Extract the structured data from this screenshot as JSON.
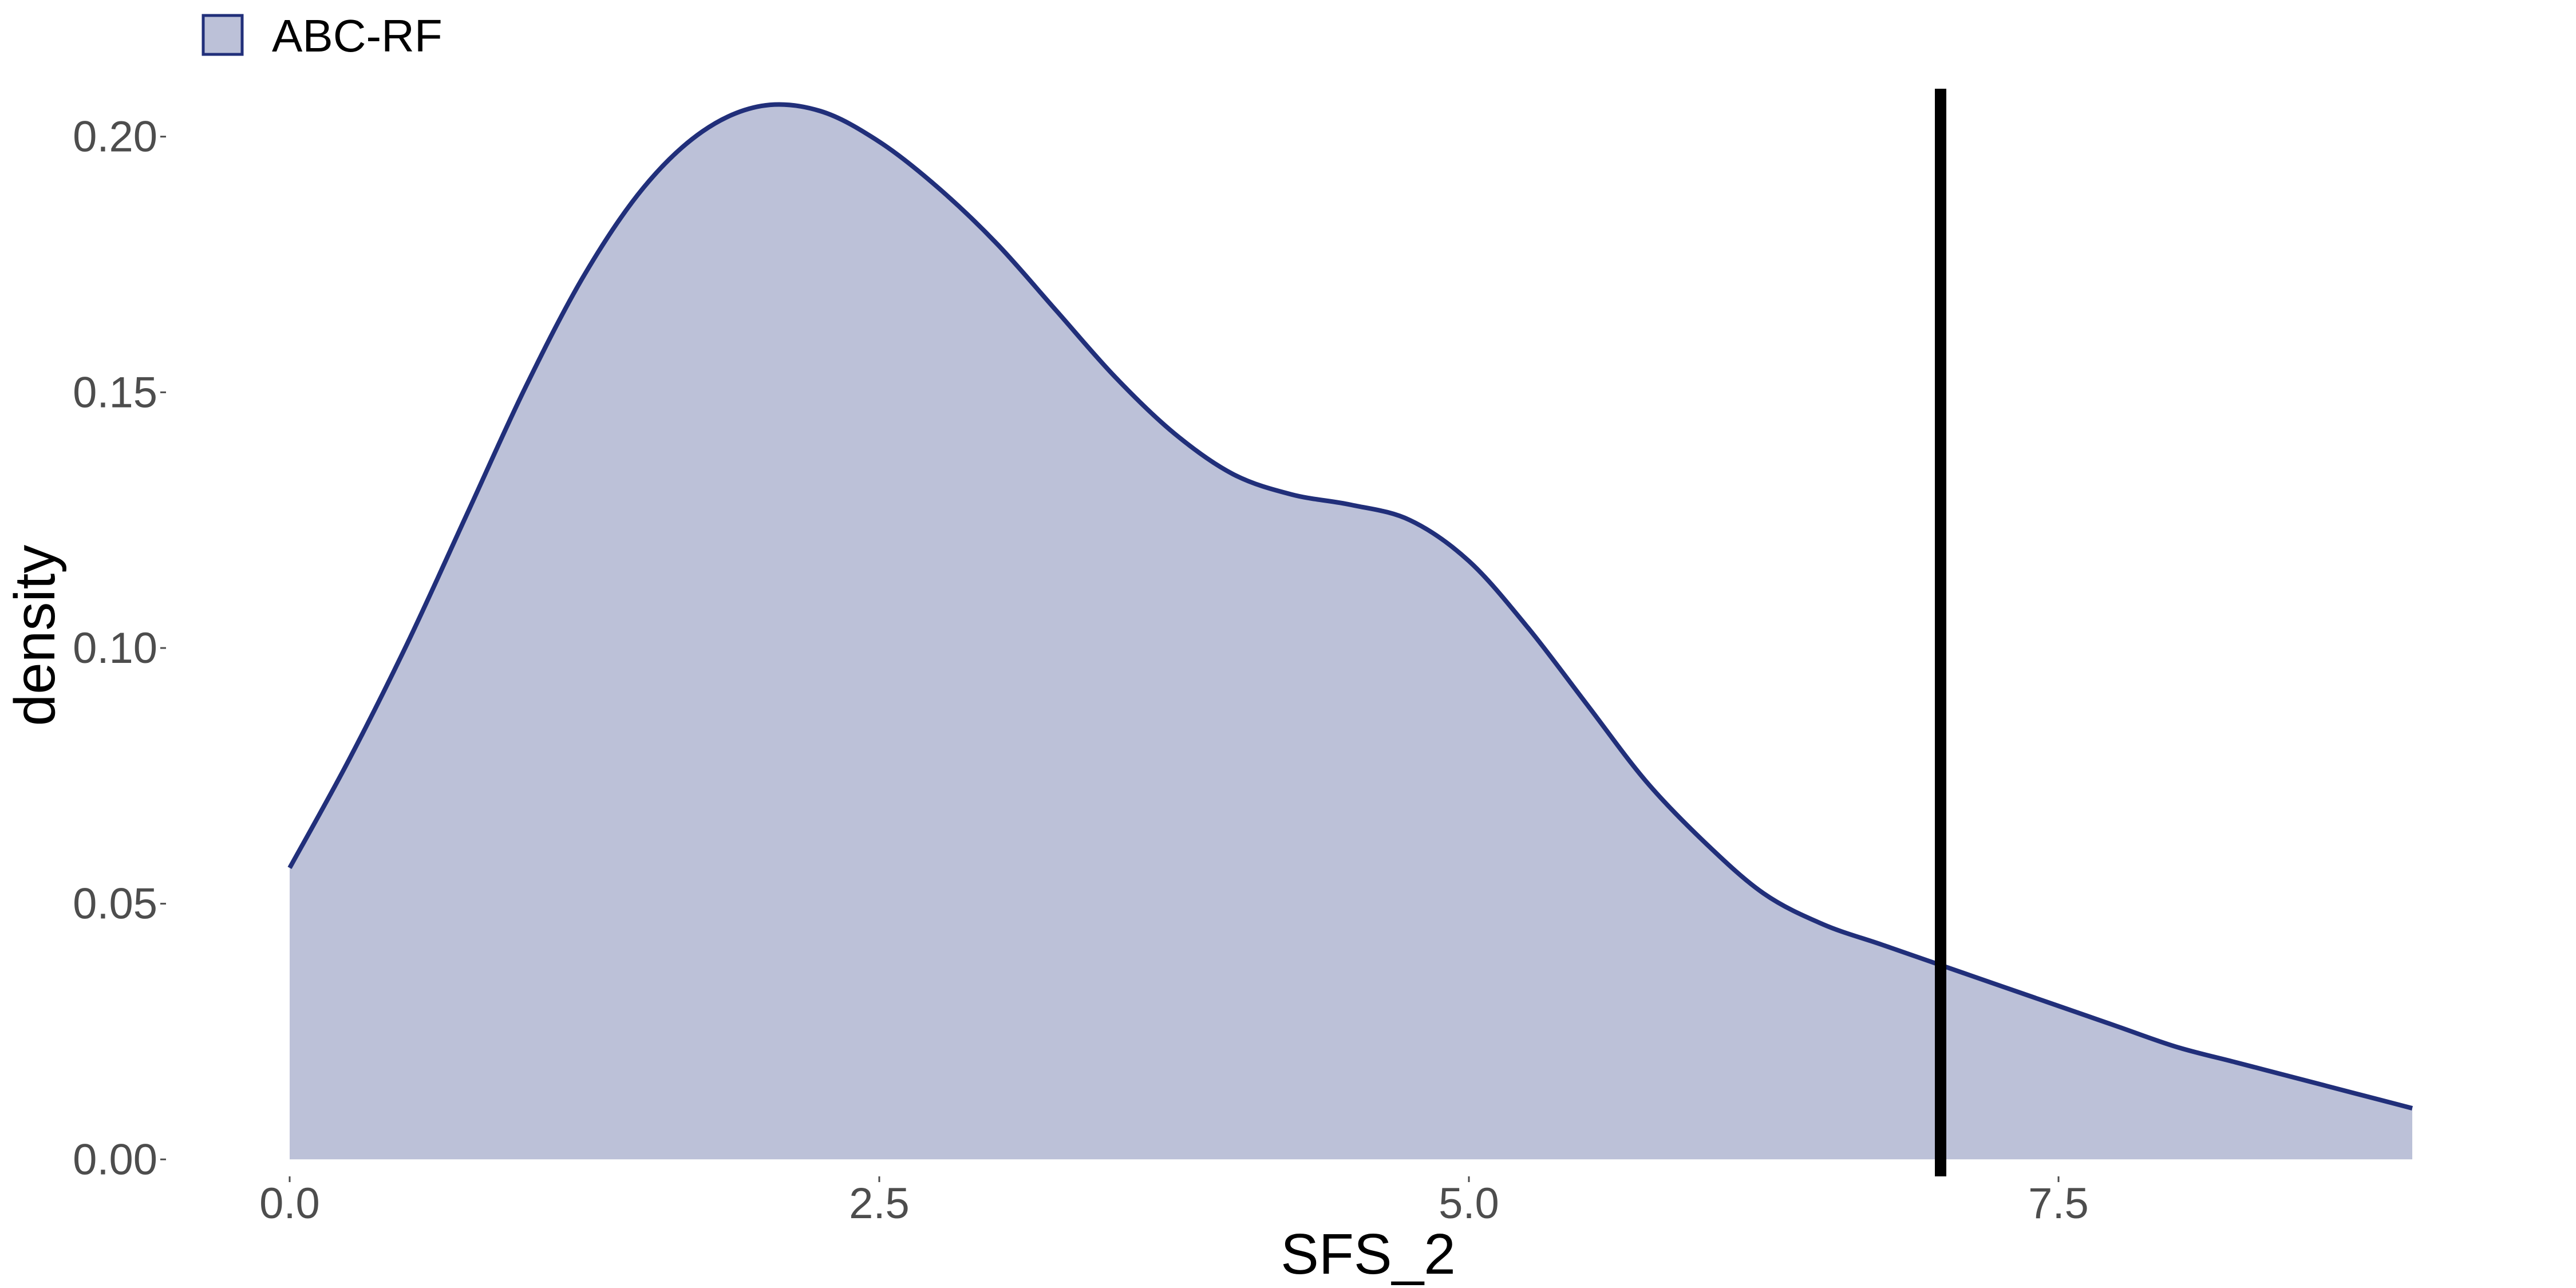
{
  "chart_data": {
    "type": "area",
    "xlabel": "SFS_2",
    "ylabel": "density",
    "xlim": [
      -0.5,
      9.5
    ],
    "ylim": [
      -0.005,
      0.22
    ],
    "x_ticks": [
      "0.0",
      "2.5",
      "5.0",
      "7.5"
    ],
    "y_ticks": [
      "0.00",
      "0.05",
      "0.10",
      "0.15",
      "0.20"
    ],
    "grid": false,
    "legend": {
      "placement": "top-left",
      "entries": [
        "ABC-RF"
      ]
    },
    "series": [
      {
        "name": "ABC-RF",
        "fill": "#bcc1d8",
        "stroke": "#212f7a",
        "x": [
          0.0,
          0.25,
          0.5,
          0.75,
          1.0,
          1.25,
          1.5,
          1.75,
          2.0,
          2.25,
          2.5,
          2.75,
          3.0,
          3.25,
          3.5,
          3.75,
          4.0,
          4.25,
          4.5,
          4.75,
          5.0,
          5.25,
          5.5,
          5.75,
          6.0,
          6.25,
          6.5,
          6.75,
          7.0,
          7.25,
          7.5,
          7.75,
          8.0,
          8.25,
          8.5,
          8.75,
          9.0
        ],
        "y": [
          0.057,
          0.078,
          0.101,
          0.126,
          0.151,
          0.173,
          0.19,
          0.201,
          0.206,
          0.205,
          0.199,
          0.19,
          0.179,
          0.166,
          0.153,
          0.142,
          0.134,
          0.13,
          0.128,
          0.125,
          0.117,
          0.104,
          0.089,
          0.074,
          0.062,
          0.052,
          0.046,
          0.042,
          0.038,
          0.034,
          0.03,
          0.026,
          0.022,
          0.019,
          0.016,
          0.013,
          0.01
        ]
      }
    ],
    "vline": {
      "x": 7.0,
      "color": "#000000"
    }
  }
}
